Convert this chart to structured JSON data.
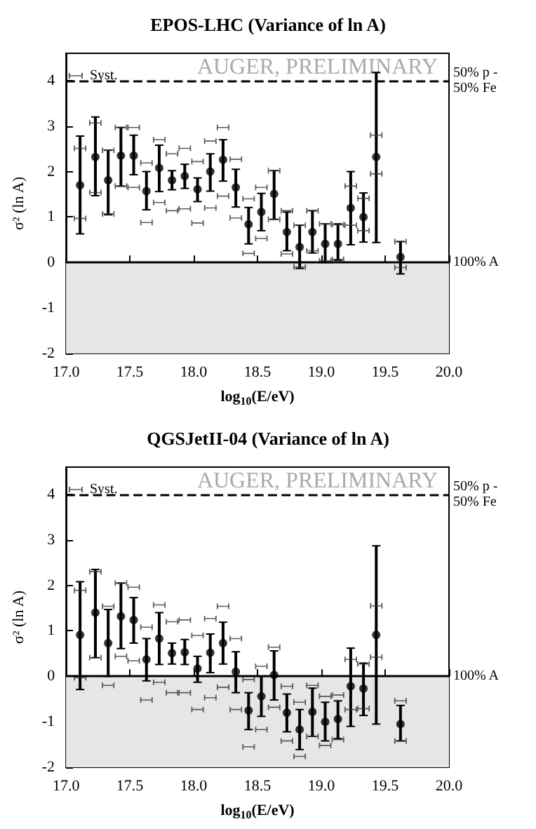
{
  "chart_data": [
    {
      "type": "scatter",
      "title": "EPOS-LHC (Variance of ln A)",
      "xlabel": "log$_{10}$(E/eV)",
      "ylabel": "σ² (ln A)",
      "annotations": [
        "AUGER, PRELIMINARY"
      ],
      "legend": "top left",
      "xlim": [
        17,
        20
      ],
      "xticks": [
        {
          "value": 17,
          "label": "17.0"
        },
        {
          "value": 17.5,
          "label": "17.5"
        },
        {
          "value": 18,
          "label": "18.0"
        },
        {
          "value": 18.5,
          "label": "18.5"
        },
        {
          "value": 19,
          "label": "19.0"
        },
        {
          "value": 19.5,
          "label": "19.5"
        },
        {
          "value": 20,
          "label": "20.0"
        }
      ],
      "ylim": [
        -2,
        4.6
      ],
      "yticks": [
        -2,
        -1,
        0,
        1,
        2,
        3,
        4
      ],
      "ref_lines": [
        {
          "axis": "y",
          "value": 4,
          "label": "50% p - 50% Fe",
          "line_style": "dashed",
          "color": "#000000"
        },
        {
          "axis": "y",
          "value": 0,
          "label": "100% A",
          "line_style": "solid",
          "color": "#000000"
        }
      ],
      "bands": [
        {
          "axis": "y",
          "from": -2,
          "to": 0,
          "color": "#e6e6e6"
        }
      ],
      "x": [
        17.11,
        17.23,
        17.33,
        17.43,
        17.53,
        17.63,
        17.73,
        17.83,
        17.93,
        18.03,
        18.13,
        18.23,
        18.33,
        18.43,
        18.53,
        18.63,
        18.73,
        18.83,
        18.93,
        19.03,
        19.13,
        19.23,
        19.33,
        19.43,
        19.62
      ],
      "series": [
        {
          "color": "#000000",
          "marker": "circle",
          "values": [
            1.7,
            2.32,
            1.81,
            2.35,
            2.35,
            1.57,
            2.08,
            1.81,
            1.9,
            1.61,
            2.0,
            2.26,
            1.65,
            0.84,
            1.11,
            1.51,
            0.67,
            0.34,
            0.67,
            0.41,
            0.41,
            1.2,
            1.0,
            2.32,
            0.12
          ],
          "errors": [
            [
              0.63,
              2.78
            ],
            [
              1.47,
              3.2
            ],
            [
              1.05,
              2.47
            ],
            [
              1.68,
              2.97
            ],
            [
              1.93,
              2.8
            ],
            [
              1.16,
              2.0
            ],
            [
              1.56,
              2.58
            ],
            [
              1.6,
              2.02
            ],
            [
              1.63,
              2.16
            ],
            [
              1.34,
              1.86
            ],
            [
              1.57,
              2.39
            ],
            [
              1.79,
              2.7
            ],
            [
              1.22,
              2.05
            ],
            [
              0.41,
              1.21
            ],
            [
              0.7,
              1.52
            ],
            [
              0.95,
              2.02
            ],
            [
              0.26,
              1.11
            ],
            [
              -0.13,
              0.82
            ],
            [
              0.21,
              1.14
            ],
            [
              0,
              0.85
            ],
            [
              0.05,
              0.85
            ],
            [
              0.39,
              2.0
            ],
            [
              0.45,
              1.53
            ],
            [
              0.44,
              4.18
            ],
            [
              -0.25,
              0.46
            ]
          ]
        },
        {
          "name": "Syst.",
          "color": "#333333",
          "marker": "cross",
          "values": [
            2.51,
            3.07,
            2.47,
            2.97,
            2.97,
            2.19,
            2.7,
            2.39,
            2.51,
            2.22,
            2.67,
            2.97,
            2.27,
            1.4,
            1.65,
            2.02,
            1.14,
            0.82,
            1.14,
            0.85,
            0.83,
            1.68,
            1.41,
            2.8,
            0.46
          ]
        },
        {
          "color": "#333333",
          "marker": "cross",
          "values": [
            0.97,
            1.54,
            1.07,
            1.68,
            1.65,
            0.88,
            1.32,
            1.14,
            1.18,
            0.87,
            1.2,
            1.46,
            0.98,
            0.2,
            0.53,
            0.95,
            0.19,
            -0.1,
            0.26,
            0.04,
            0.07,
            0.82,
            0.7,
            1.95,
            -0.11
          ]
        }
      ]
    },
    {
      "type": "scatter",
      "title": "QGSJetII-04 (Variance of ln A)",
      "xlabel": "log$_{10}$(E/eV)",
      "ylabel": "σ² (ln A)",
      "annotations": [
        "AUGER, PRELIMINARY"
      ],
      "legend": "top left",
      "xlim": [
        17,
        20
      ],
      "xticks": [
        {
          "value": 17,
          "label": "17.0"
        },
        {
          "value": 17.5,
          "label": "17.5"
        },
        {
          "value": 18,
          "label": "18.0"
        },
        {
          "value": 18.5,
          "label": "18.5"
        },
        {
          "value": 19,
          "label": "19.0"
        },
        {
          "value": 19.5,
          "label": "19.5"
        },
        {
          "value": 20,
          "label": "20.0"
        }
      ],
      "ylim": [
        -2,
        4.6
      ],
      "yticks": [
        -2,
        -1,
        0,
        1,
        2,
        3,
        4
      ],
      "ref_lines": [
        {
          "axis": "y",
          "value": 4,
          "label": "50% p - 50% Fe",
          "line_style": "dashed",
          "color": "#000000"
        },
        {
          "axis": "y",
          "value": 0,
          "label": "100% A",
          "line_style": "solid",
          "color": "#000000"
        }
      ],
      "bands": [
        {
          "axis": "y",
          "from": -2,
          "to": 0,
          "color": "#e6e6e6"
        }
      ],
      "x": [
        17.11,
        17.23,
        17.33,
        17.43,
        17.53,
        17.63,
        17.73,
        17.83,
        17.93,
        18.03,
        18.13,
        18.23,
        18.33,
        18.43,
        18.53,
        18.63,
        18.73,
        18.83,
        18.93,
        19.03,
        19.13,
        19.23,
        19.33,
        19.43,
        19.62
      ],
      "series": [
        {
          "color": "#000000",
          "marker": "circle",
          "values": [
            0.91,
            1.4,
            0.73,
            1.32,
            1.24,
            0.37,
            0.83,
            0.51,
            0.53,
            0.17,
            0.52,
            0.73,
            0.1,
            -0.75,
            -0.44,
            0.03,
            -0.8,
            -1.17,
            -0.78,
            -1.0,
            -0.94,
            -0.22,
            -0.27,
            0.91,
            -1.05
          ],
          "errors": [
            [
              -0.29,
              2.08
            ],
            [
              0.41,
              2.35
            ],
            [
              0,
              1.47
            ],
            [
              0.61,
              2.05
            ],
            [
              0.73,
              1.73
            ],
            [
              -0.1,
              0.83
            ],
            [
              0.26,
              1.4
            ],
            [
              0.27,
              0.73
            ],
            [
              0.26,
              0.81
            ],
            [
              -0.13,
              0.44
            ],
            [
              0.08,
              0.93
            ],
            [
              0.27,
              1.19
            ],
            [
              -0.36,
              0.54
            ],
            [
              -1.17,
              -0.36
            ],
            [
              -0.88,
              0
            ],
            [
              -0.52,
              0.56
            ],
            [
              -1.22,
              -0.39
            ],
            [
              -1.61,
              -0.73
            ],
            [
              -1.32,
              -0.26
            ],
            [
              -1.42,
              -0.57
            ],
            [
              -1.37,
              -0.54
            ],
            [
              -1.1,
              0.62
            ],
            [
              -0.86,
              0.29
            ],
            [
              -1.05,
              2.87
            ],
            [
              -1.42,
              -0.64
            ]
          ]
        },
        {
          "name": "Syst.",
          "color": "#333333",
          "marker": "cross",
          "values": [
            1.89,
            2.3,
            1.54,
            2.05,
            1.96,
            1.08,
            1.57,
            1.2,
            1.24,
            0.9,
            1.27,
            1.54,
            0.83,
            -0.07,
            0.22,
            0.64,
            -0.22,
            -0.57,
            -0.2,
            -0.44,
            -0.41,
            0.37,
            0.27,
            1.55,
            -0.54
          ]
        },
        {
          "color": "#333333",
          "marker": "cross",
          "values": [
            -0.03,
            0.41,
            -0.2,
            0.44,
            0.34,
            -0.52,
            -0.13,
            -0.36,
            -0.36,
            -0.73,
            -0.47,
            -0.24,
            -0.73,
            -1.55,
            -1.17,
            -0.68,
            -1.42,
            -1.76,
            -1.32,
            -1.52,
            -1.39,
            -0.73,
            -0.71,
            0.42,
            -1.42
          ]
        }
      ]
    }
  ]
}
